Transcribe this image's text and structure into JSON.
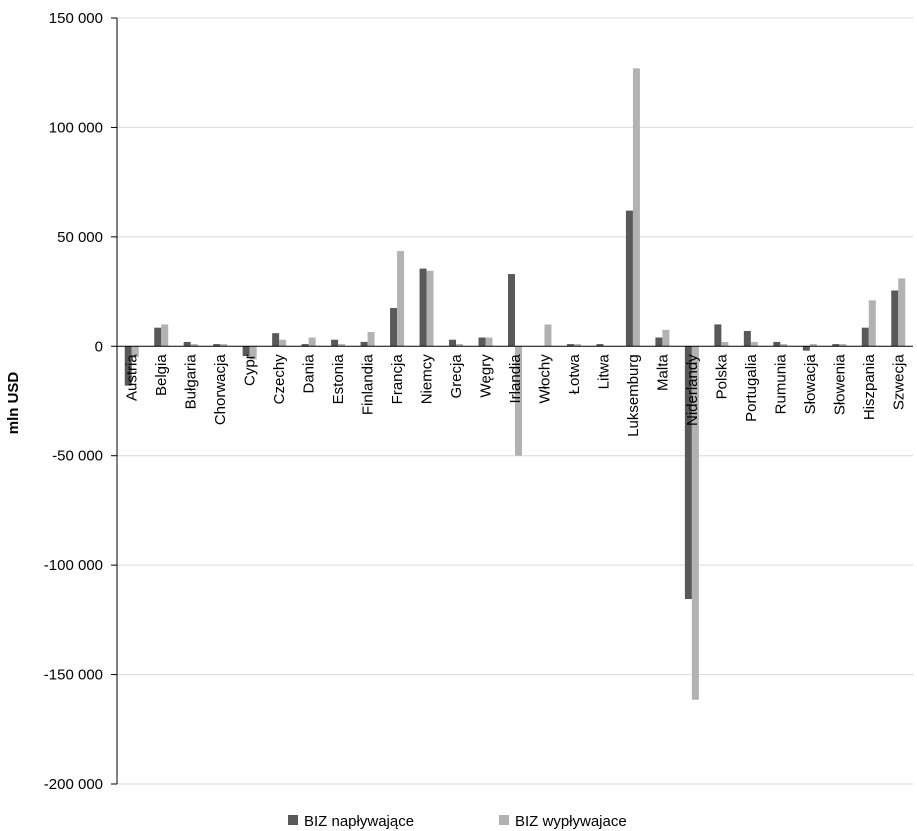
{
  "chart_data": {
    "type": "bar",
    "ylabel": "mln USD",
    "ylim": [
      -200000,
      150000
    ],
    "yticks": [
      150000,
      100000,
      50000,
      0,
      -50000,
      -100000,
      -150000,
      -200000
    ],
    "ytick_labels": [
      "150 000",
      "100 000",
      "50 000",
      "0",
      "-50 000",
      "-100 000",
      "-150 000",
      "-200 000"
    ],
    "grid": "horizontal",
    "legend_position": "bottom",
    "categories": [
      "Austria",
      "Belgia",
      "Bułgaria",
      "Chorwacja",
      "Cypr",
      "Czechy",
      "Dania",
      "Estonia",
      "Finlandia",
      "Francja",
      "Niemcy",
      "Grecja",
      "Węgry",
      "Irlandia",
      "Włochy",
      "Łotwa",
      "Litwa",
      "Luksemburg",
      "Malta",
      "Niderlandy",
      "Polska",
      "Portugalia",
      "Rumunia",
      "Słowacja",
      "Słowenia",
      "Hiszpania",
      "Szwecja"
    ],
    "series": [
      {
        "name": "BIZ napływające",
        "color": "#595959",
        "values": [
          -18000,
          8500,
          2000,
          1000,
          -4500,
          6000,
          1000,
          3000,
          2000,
          17500,
          35500,
          3000,
          4000,
          33000,
          0,
          1000,
          1000,
          62000,
          4000,
          -115500,
          10000,
          7000,
          2000,
          -2000,
          1000,
          8500,
          25500
        ]
      },
      {
        "name": "BIZ wypływajace",
        "color": "#b2b2b2",
        "values": [
          -5000,
          10000,
          1000,
          1000,
          -6000,
          3000,
          4000,
          1000,
          6500,
          43500,
          34500,
          1000,
          4000,
          -50000,
          10000,
          1000,
          0,
          127000,
          7500,
          -161500,
          2000,
          2000,
          1000,
          1000,
          1000,
          21000,
          31000
        ]
      }
    ]
  }
}
